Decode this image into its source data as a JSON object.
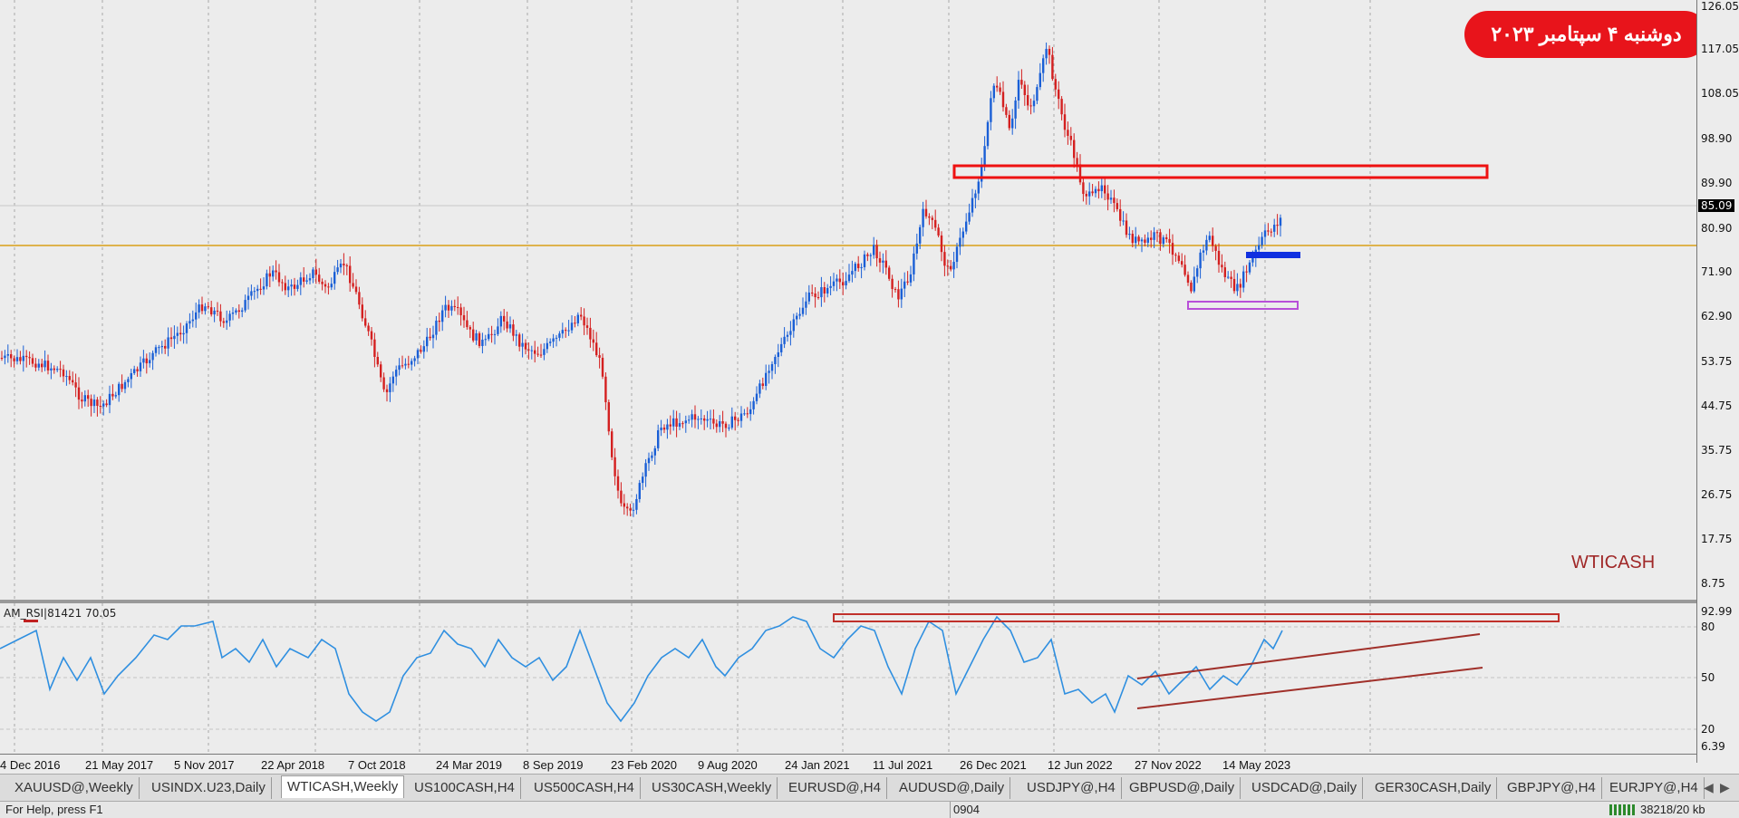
{
  "date_badge": "دوشنبه ۴ سپتامبر ۲۰۲۳",
  "symbol_label": "WTICASH",
  "price_axis": {
    "labels": [
      "126.05",
      "117.05",
      "108.05",
      "98.90",
      "89.90",
      "80.90",
      "71.90",
      "62.90",
      "53.75",
      "44.75",
      "35.75",
      "26.75",
      "17.75",
      "8.75"
    ],
    "current": "85.09"
  },
  "rsi": {
    "header": "AM_RSI|81421 70.05",
    "labels": [
      "92.99",
      "80",
      "50",
      "20",
      "6.39"
    ]
  },
  "date_axis": [
    "4 Dec 2016",
    "21 May 2017",
    "5 Nov 2017",
    "22 Apr 2018",
    "7 Oct 2018",
    "24 Mar 2019",
    "8 Sep 2019",
    "23 Feb 2020",
    "9 Aug 2020",
    "24 Jan 2021",
    "11 Jul 2021",
    "26 Dec 2021",
    "12 Jun 2022",
    "27 Nov 2022",
    "14 May 2023"
  ],
  "tabs": [
    {
      "label": "XAUUSD@,Weekly"
    },
    {
      "label": "USINDX.U23,Daily"
    },
    {
      "label": "WTICASH,Weekly",
      "active": true
    },
    {
      "label": "US100CASH,H4"
    },
    {
      "label": "US500CASH,H4"
    },
    {
      "label": "US30CASH,Weekly"
    },
    {
      "label": "EURUSD@,H4"
    },
    {
      "label": "AUDUSD@,Daily"
    },
    {
      "label": "USDJPY@,H4"
    },
    {
      "label": "GBPUSD@,Daily"
    },
    {
      "label": "USDCAD@,Daily"
    },
    {
      "label": "GER30CASH,Daily"
    },
    {
      "label": "GBPJPY@,H4"
    },
    {
      "label": "EURJPY@,H4"
    }
  ],
  "status": {
    "help": "For Help, press F1",
    "code": "0904",
    "traffic": "38218/20 kb"
  },
  "colors": {
    "bull": "#1a5fd6",
    "bear": "#d42020",
    "rsi_line": "#2f8fe0",
    "hline": "#d9a017",
    "zone_red": "#ee1111",
    "zone_blue": "#1030e0",
    "zone_purple": "#b84fd8",
    "trend": "#a0302a"
  }
}
